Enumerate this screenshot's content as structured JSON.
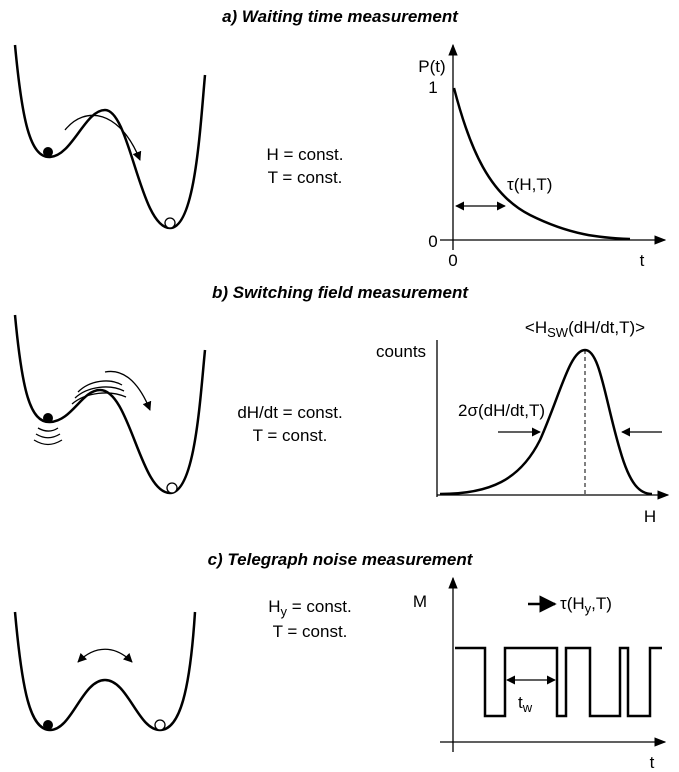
{
  "panels": [
    {
      "title": "a) Waiting time measurement",
      "conditions": [
        "H = const.",
        "T = const."
      ],
      "graph": {
        "y_label": "P(t)",
        "x_label": "t",
        "y_ticks": [
          "1",
          "0"
        ],
        "x_ticks": [
          "0"
        ],
        "annotation": "τ(H,T)"
      }
    },
    {
      "title": "b) Switching field measurement",
      "conditions": [
        "dH/dt = const.",
        "T = const."
      ],
      "graph": {
        "y_label": "counts",
        "x_label": "H",
        "peak_label": {
          "start": "<H",
          "sub": "SW",
          "end": "(dH/dt,T)>"
        },
        "width_label": "2σ(dH/dt,T)"
      }
    },
    {
      "title": "c) Telegraph noise measurement",
      "conditions": [
        {
          "start": "H",
          "sub": "y",
          "end": " = const."
        },
        "T = const."
      ],
      "graph": {
        "y_label": "M",
        "x_label": "t",
        "interval_label": {
          "start": "t",
          "sub": "w"
        },
        "legend": {
          "start": "τ(H",
          "sub": "y",
          "end": ",T)"
        }
      }
    }
  ]
}
